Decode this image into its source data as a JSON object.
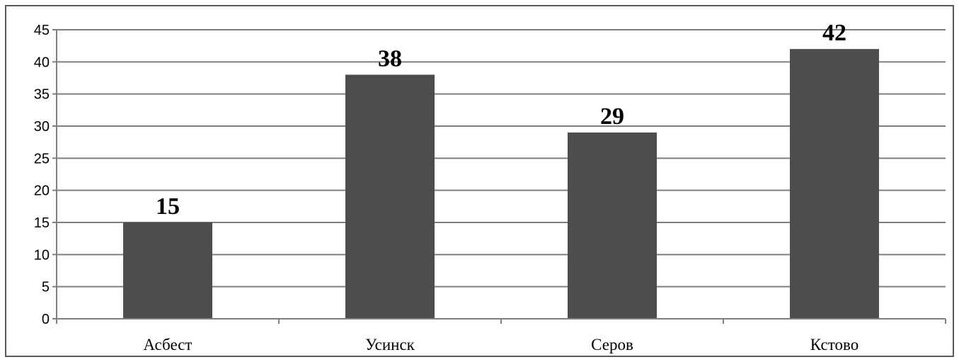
{
  "chart_data": {
    "type": "bar",
    "categories": [
      "Асбест",
      "Усинск",
      "Серов",
      "Кстово"
    ],
    "values": [
      15,
      38,
      29,
      42
    ],
    "data_labels": [
      "15",
      "38",
      "29",
      "42"
    ],
    "y_ticks": [
      "0",
      "5",
      "10",
      "15",
      "20",
      "25",
      "30",
      "35",
      "40",
      "45"
    ],
    "ylim": [
      0,
      45
    ],
    "grid": true,
    "legend": "none",
    "colors": {
      "bar": "#4d4d4d",
      "grid": "#7f7f7f",
      "axis": "#7f7f7f"
    }
  }
}
